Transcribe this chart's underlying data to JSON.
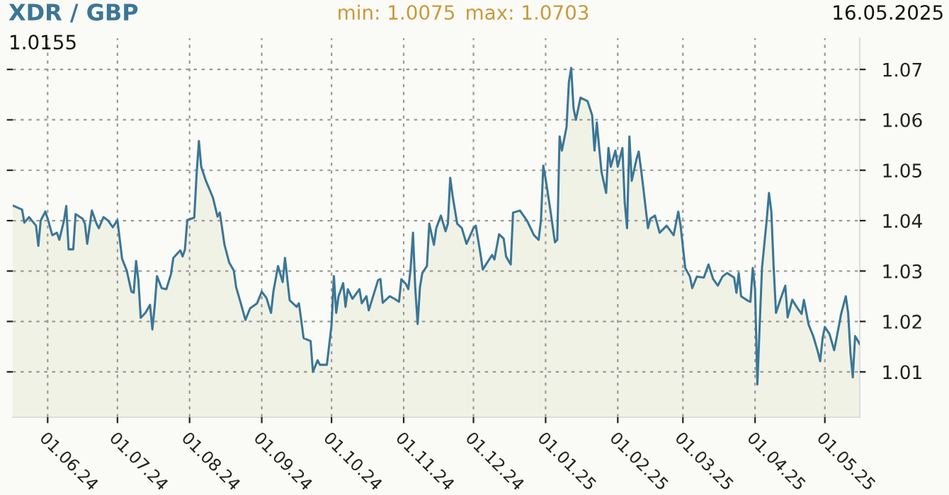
{
  "chart_data": {
    "type": "area",
    "title": "XDR / GBP",
    "annotations": [
      "min: 1.0075",
      "max: 1.0703",
      "16.05.2025",
      "1.0155"
    ],
    "x": [
      "2024-05-17",
      "2024-05-21",
      "2024-05-22",
      "2024-05-24",
      "2024-05-27",
      "2024-05-28",
      "2024-05-29",
      "2024-05-31",
      "2024-06-01",
      "2024-06-03",
      "2024-06-05",
      "2024-06-06",
      "2024-06-08",
      "2024-06-09",
      "2024-06-10",
      "2024-06-12",
      "2024-06-13",
      "2024-06-16",
      "2024-06-17",
      "2024-06-18",
      "2024-06-20",
      "2024-06-22",
      "2024-06-23",
      "2024-06-25",
      "2024-06-27",
      "2024-06-29",
      "2024-07-01",
      "2024-07-03",
      "2024-07-05",
      "2024-07-07",
      "2024-07-08",
      "2024-07-09",
      "2024-07-10",
      "2024-07-11",
      "2024-07-13",
      "2024-07-15",
      "2024-07-16",
      "2024-07-17",
      "2024-07-18",
      "2024-07-20",
      "2024-07-22",
      "2024-07-24",
      "2024-07-25",
      "2024-07-28",
      "2024-07-29",
      "2024-07-30",
      "2024-07-31",
      "2024-08-03",
      "2024-08-04",
      "2024-08-05",
      "2024-08-06",
      "2024-08-08",
      "2024-08-11",
      "2024-08-13",
      "2024-08-14",
      "2024-08-16",
      "2024-08-18",
      "2024-08-20",
      "2024-08-21",
      "2024-08-23",
      "2024-08-25",
      "2024-08-27",
      "2024-08-30",
      "2024-09-01",
      "2024-09-03",
      "2024-09-05",
      "2024-09-06",
      "2024-09-08",
      "2024-09-10",
      "2024-09-11",
      "2024-09-13",
      "2024-09-16",
      "2024-09-17",
      "2024-09-19",
      "2024-09-22",
      "2024-09-23",
      "2024-09-25",
      "2024-09-26",
      "2024-09-29",
      "2024-10-01",
      "2024-10-02",
      "2024-10-03",
      "2024-10-04",
      "2024-10-06",
      "2024-10-07",
      "2024-10-08",
      "2024-10-10",
      "2024-10-13",
      "2024-10-14",
      "2024-10-16",
      "2024-10-17",
      "2024-10-21",
      "2024-10-22",
      "2024-10-23",
      "2024-10-26",
      "2024-10-28",
      "2024-10-30",
      "2024-10-31",
      "2024-11-02",
      "2024-11-03",
      "2024-11-04",
      "2024-11-05",
      "2024-11-06",
      "2024-11-07",
      "2024-11-08",
      "2024-11-09",
      "2024-11-11",
      "2024-11-12",
      "2024-11-14",
      "2024-11-15",
      "2024-11-17",
      "2024-11-19",
      "2024-11-20",
      "2024-11-21",
      "2024-11-22",
      "2024-11-24",
      "2024-11-26",
      "2024-11-28",
      "2024-12-01",
      "2024-12-02",
      "2024-12-04",
      "2024-12-05",
      "2024-12-09",
      "2024-12-10",
      "2024-12-12",
      "2024-12-14",
      "2024-12-15",
      "2024-12-17",
      "2024-12-18",
      "2024-12-21",
      "2024-12-24",
      "2024-12-27",
      "2024-12-29",
      "2024-12-30",
      "2024-12-31",
      "2025-01-01",
      "2025-01-03",
      "2025-01-05",
      "2025-01-06",
      "2025-01-07",
      "2025-01-08",
      "2025-01-10",
      "2025-01-11",
      "2025-01-12",
      "2025-01-13",
      "2025-01-14",
      "2025-01-16",
      "2025-01-19",
      "2025-01-21",
      "2025-01-22",
      "2025-01-23",
      "2025-01-25",
      "2025-01-27",
      "2025-01-28",
      "2025-01-29",
      "2025-01-31",
      "2025-02-01",
      "2025-02-03",
      "2025-02-04",
      "2025-02-05",
      "2025-02-06",
      "2025-02-07",
      "2025-02-09",
      "2025-02-10",
      "2025-02-11",
      "2025-02-12",
      "2025-02-14",
      "2025-02-15",
      "2025-02-17",
      "2025-02-19",
      "2025-02-22",
      "2025-02-25",
      "2025-02-27",
      "2025-02-28",
      "2025-03-02",
      "2025-03-04",
      "2025-03-05",
      "2025-03-07",
      "2025-03-10",
      "2025-03-12",
      "2025-03-14",
      "2025-03-16",
      "2025-03-18",
      "2025-03-20",
      "2025-03-23",
      "2025-03-24",
      "2025-03-25",
      "2025-03-26",
      "2025-03-29",
      "2025-03-30",
      "2025-03-31",
      "2025-04-01",
      "2025-04-02",
      "2025-04-03",
      "2025-04-04",
      "2025-04-06",
      "2025-04-07",
      "2025-04-08",
      "2025-04-09",
      "2025-04-10",
      "2025-04-12",
      "2025-04-14",
      "2025-04-15",
      "2025-04-17",
      "2025-04-19",
      "2025-04-21",
      "2025-04-22",
      "2025-04-24",
      "2025-04-26",
      "2025-04-28",
      "2025-04-29",
      "2025-04-30",
      "2025-05-01",
      "2025-05-03",
      "2025-05-05",
      "2025-05-06",
      "2025-05-08",
      "2025-05-10",
      "2025-05-11",
      "2025-05-12",
      "2025-05-13",
      "2025-05-14",
      "2025-05-16"
    ],
    "series": [
      {
        "color": "#3b7696",
        "values": [
          1.043,
          1.0422,
          1.0396,
          1.0407,
          1.039,
          1.035,
          1.04,
          1.0418,
          1.0404,
          1.0371,
          1.0376,
          1.0362,
          1.04,
          1.0429,
          1.0343,
          1.0343,
          1.0413,
          1.0404,
          1.0394,
          1.0354,
          1.042,
          1.0394,
          1.0385,
          1.0407,
          1.04,
          1.0387,
          1.0401,
          1.0324,
          1.0301,
          1.0259,
          1.0257,
          1.032,
          1.0282,
          1.0207,
          1.0217,
          1.0233,
          1.0184,
          1.0231,
          1.029,
          1.0266,
          1.0264,
          1.0294,
          1.0326,
          1.0341,
          1.0329,
          1.0343,
          1.0401,
          1.0406,
          1.0491,
          1.0558,
          1.0507,
          1.0479,
          1.0446,
          1.0408,
          1.0416,
          1.0352,
          1.0317,
          1.0301,
          1.0268,
          1.0236,
          1.0203,
          1.0226,
          1.0236,
          1.0259,
          1.0247,
          1.0217,
          1.0259,
          1.031,
          1.0278,
          1.0326,
          1.0242,
          1.0229,
          1.0236,
          1.0167,
          1.0161,
          1.01,
          1.0123,
          1.0114,
          1.0114,
          1.0193,
          1.029,
          1.0217,
          1.025,
          1.0276,
          1.0229,
          1.0264,
          1.0245,
          1.0264,
          1.0236,
          1.025,
          1.0222,
          1.0282,
          1.0284,
          1.0237,
          1.025,
          1.0245,
          1.0239,
          1.0284,
          1.0274,
          1.0264,
          1.0306,
          1.0376,
          1.0264,
          1.0195,
          1.0268,
          1.0296,
          1.031,
          1.0394,
          1.0352,
          1.0385,
          1.041,
          1.0379,
          1.0394,
          1.0485,
          1.045,
          1.0394,
          1.0385,
          1.0354,
          1.0385,
          1.039,
          1.0334,
          1.0303,
          1.0332,
          1.0323,
          1.0373,
          1.0364,
          1.0329,
          1.0313,
          1.0416,
          1.042,
          1.04,
          1.0371,
          1.0362,
          1.0401,
          1.0509,
          1.0483,
          1.0422,
          1.0357,
          1.0362,
          1.0567,
          1.0539,
          1.0586,
          1.0675,
          1.0703,
          1.0623,
          1.06,
          1.0644,
          1.0637,
          1.0609,
          1.0539,
          1.0595,
          1.0497,
          1.0455,
          1.0544,
          1.0507,
          1.0539,
          1.0507,
          1.0544,
          1.0436,
          1.0385,
          1.0567,
          1.0479,
          1.0521,
          1.0537,
          1.0502,
          1.0464,
          1.0385,
          1.0404,
          1.041,
          1.0376,
          1.039,
          1.0371,
          1.0418,
          1.039,
          1.0306,
          1.0289,
          1.0266,
          1.0289,
          1.0287,
          1.0313,
          1.0284,
          1.0271,
          1.0289,
          1.0296,
          1.0287,
          1.0257,
          1.0296,
          1.025,
          1.0241,
          1.0239,
          1.0306,
          1.0264,
          1.0075,
          1.0194,
          1.0307,
          1.0401,
          1.0455,
          1.0418,
          1.0307,
          1.0217,
          1.0245,
          1.0271,
          1.0208,
          1.0243,
          1.0228,
          1.0215,
          1.0243,
          1.0194,
          1.0171,
          1.014,
          1.0121,
          1.0166,
          1.0189,
          1.0175,
          1.0143,
          1.0166,
          1.0215,
          1.025,
          1.0217,
          1.0138,
          1.0089,
          1.0171,
          1.0155
        ]
      }
    ],
    "xlim": [
      "2024-05-17",
      "2025-05-16"
    ],
    "ylim": [
      1.001,
      1.0762
    ],
    "xticks": [
      {
        "value": "2024-06-01",
        "label": "01.06.24"
      },
      {
        "value": "2024-07-01",
        "label": "01.07.24"
      },
      {
        "value": "2024-08-01",
        "label": "01.08.24"
      },
      {
        "value": "2024-09-01",
        "label": "01.09.24"
      },
      {
        "value": "2024-10-01",
        "label": "01.10.24"
      },
      {
        "value": "2024-11-01",
        "label": "01.11.24"
      },
      {
        "value": "2024-12-01",
        "label": "01.12.24"
      },
      {
        "value": "2025-01-01",
        "label": "01.01.25"
      },
      {
        "value": "2025-02-01",
        "label": "01.02.25"
      },
      {
        "value": "2025-03-01",
        "label": "01.03.25"
      },
      {
        "value": "2025-04-01",
        "label": "01.04.25"
      },
      {
        "value": "2025-05-01",
        "label": "01.05.25"
      }
    ],
    "yticks": [
      1.01,
      1.02,
      1.03,
      1.04,
      1.05,
      1.06,
      1.07
    ],
    "grid": true,
    "line_style": "solid"
  }
}
